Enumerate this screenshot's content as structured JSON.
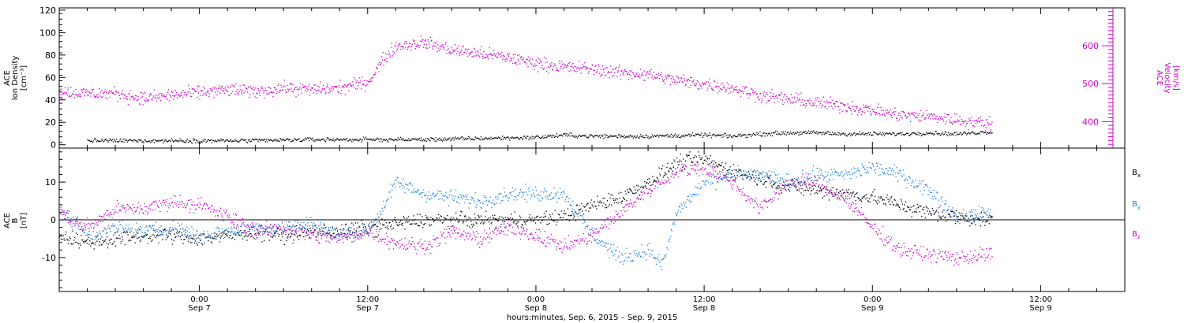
{
  "colors": {
    "black": "#000000",
    "magenta": "#cc00cc",
    "blue": "#1a7fe0"
  },
  "xaxis": {
    "label": "hours:minutes, Sep. 6, 2015 – Sep. 9, 2015",
    "range_hours": [
      -10,
      66
    ],
    "ticks": [
      {
        "h": 0,
        "time": "0:00",
        "date": "Sep 7"
      },
      {
        "h": 12,
        "time": "12:00",
        "date": "Sep 7"
      },
      {
        "h": 24,
        "time": "0:00",
        "date": "Sep 8"
      },
      {
        "h": 36,
        "time": "12:00",
        "date": "Sep 8"
      },
      {
        "h": 48,
        "time": "0:00",
        "date": "Sep 9"
      },
      {
        "h": 60,
        "time": "12:00",
        "date": "Sep 9"
      }
    ]
  },
  "chart_data": [
    {
      "type": "scatter",
      "ylim": [
        -3,
        122
      ],
      "yticks": [
        0,
        20,
        40,
        60,
        80,
        100,
        120
      ],
      "ylabel_lines": [
        "ACE",
        "Ion Density",
        "[cm⁻³]"
      ],
      "y2": {
        "ylim": [
          330,
          700
        ],
        "ticks": [
          400,
          500,
          600
        ],
        "ylabel_lines": [
          "ACE",
          "Velocity",
          "[km/s]"
        ]
      },
      "series": [
        {
          "axis": "left",
          "color": "black",
          "x": [
            -8,
            -4,
            0,
            4,
            8,
            12,
            16,
            20,
            24,
            26,
            28,
            32,
            36,
            38,
            40,
            42,
            44,
            46,
            48,
            50,
            52,
            54,
            56.5
          ],
          "y": [
            4,
            4,
            4,
            4,
            5,
            5,
            5,
            6,
            7,
            9,
            8,
            8,
            9,
            8,
            10,
            11,
            11,
            10,
            10,
            10,
            11,
            10,
            12
          ]
        },
        {
          "axis": "right",
          "color": "magenta",
          "x": [
            -10,
            -8,
            -6,
            -4,
            -2,
            0,
            2,
            4,
            6,
            8,
            10,
            12,
            13,
            14,
            16,
            18,
            20,
            22,
            24,
            26,
            28,
            30,
            32,
            34,
            36,
            38,
            40,
            42,
            44,
            46,
            48,
            50,
            52,
            54,
            56.5
          ],
          "y": [
            480,
            475,
            475,
            462,
            470,
            478,
            485,
            480,
            490,
            485,
            490,
            505,
            560,
            600,
            610,
            590,
            580,
            570,
            555,
            545,
            540,
            530,
            525,
            510,
            500,
            490,
            470,
            460,
            450,
            442,
            430,
            418,
            415,
            405,
            395
          ]
        }
      ]
    },
    {
      "type": "scatter",
      "ylim": [
        -19,
        19
      ],
      "yticks": [
        -10,
        0,
        10
      ],
      "ylabel_lines": [
        "ACE",
        "B",
        "[nT]"
      ],
      "zero_line": true,
      "series": [
        {
          "name": "Bx",
          "color": "black",
          "x": [
            -10,
            -8,
            -6,
            -4,
            -2,
            0,
            2,
            4,
            6,
            8,
            10,
            12,
            14,
            16,
            18,
            20,
            22,
            24,
            26,
            28,
            30,
            32,
            34,
            35,
            36,
            38,
            40,
            42,
            44,
            46,
            48,
            50,
            52,
            54,
            56.5
          ],
          "y": [
            -4,
            -6,
            -5,
            -4,
            -4,
            -5,
            -4,
            -3,
            -4,
            -3,
            -3,
            -2,
            -1,
            0,
            0,
            0,
            0,
            0,
            1,
            4,
            6,
            10,
            15,
            16,
            16,
            13,
            11,
            9,
            8,
            7,
            6,
            4,
            2,
            1,
            0
          ]
        },
        {
          "name": "By",
          "color": "blue",
          "x": [
            -10,
            -8,
            -6,
            -4,
            -2,
            0,
            2,
            4,
            6,
            8,
            10,
            12,
            13,
            14,
            16,
            18,
            20,
            22,
            24,
            26,
            28,
            30,
            32,
            33,
            34,
            36,
            38,
            40,
            42,
            44,
            46,
            48,
            50,
            52,
            54,
            56.5
          ],
          "y": [
            3,
            -4,
            -2,
            -3,
            -2,
            -4,
            -3,
            -2,
            -2,
            -1,
            -4,
            -3,
            3,
            10,
            7,
            6,
            5,
            7,
            7,
            7,
            -4,
            -10,
            -8,
            -12,
            2,
            10,
            12,
            12,
            10,
            12,
            12,
            14,
            12,
            8,
            1,
            2
          ]
        },
        {
          "name": "Bz",
          "color": "magenta",
          "x": [
            -10,
            -8,
            -6,
            -4,
            -2,
            0,
            2,
            4,
            6,
            8,
            10,
            12,
            14,
            16,
            18,
            20,
            22,
            24,
            26,
            28,
            30,
            32,
            34,
            36,
            38,
            40,
            42,
            44,
            46,
            48,
            50,
            52,
            54,
            56.5
          ],
          "y": [
            2,
            -2,
            3,
            3,
            5,
            4,
            1,
            -3,
            -2,
            -4,
            -5,
            -3,
            -6,
            -7,
            -3,
            -5,
            -2,
            -4,
            -7,
            -4,
            2,
            8,
            13,
            14,
            10,
            3,
            10,
            10,
            6,
            -2,
            -8,
            -9,
            -10,
            -9
          ]
        }
      ],
      "legend": {
        "entries": [
          {
            "base": "B",
            "sub": "x",
            "color": "black"
          },
          {
            "base": "B",
            "sub": "y",
            "color": "blue"
          },
          {
            "base": "B",
            "sub": "z",
            "color": "magenta"
          }
        ]
      }
    }
  ]
}
